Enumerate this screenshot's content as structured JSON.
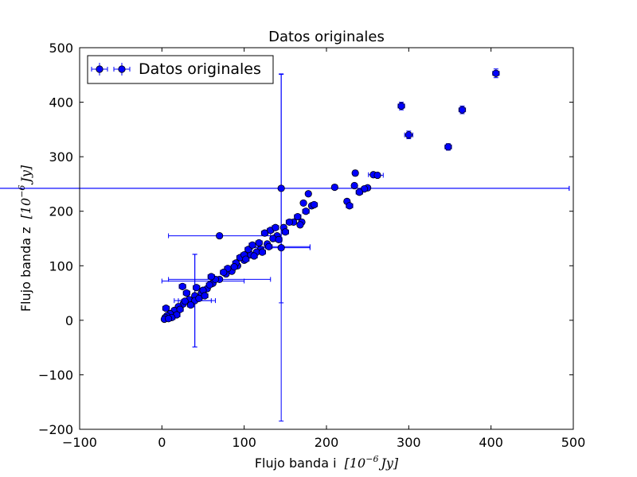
{
  "chart_data": {
    "type": "scatter",
    "title": "Datos originales",
    "xlabel": "Flujo banda i",
    "ylabel": "Flujo banda z",
    "unit_label": "[10",
    "unit_exp": "−6",
    "unit_tail": "Jy]",
    "xlim": [
      -100,
      500
    ],
    "ylim": [
      -200,
      500
    ],
    "xticks": [
      -100,
      0,
      100,
      200,
      300,
      400,
      500
    ],
    "yticks": [
      -200,
      -100,
      0,
      100,
      200,
      300,
      400,
      500
    ],
    "xtick_labels": [
      "−100",
      "0",
      "100",
      "200",
      "300",
      "400",
      "500"
    ],
    "ytick_labels": [
      "−200",
      "−100",
      "0",
      "100",
      "200",
      "300",
      "400",
      "500"
    ],
    "grid": false,
    "legend_position": "top-left",
    "marker_color": "#0000ff",
    "series": [
      {
        "name": "Datos originales",
        "x": [
          406,
          291,
          365,
          300,
          348,
          235,
          257,
          262,
          250,
          246,
          210,
          234,
          225,
          178,
          170,
          168,
          172,
          182,
          160,
          148,
          140,
          135,
          128,
          120,
          115,
          108,
          100,
          92,
          85,
          78,
          70,
          62,
          55,
          48,
          40,
          33,
          26,
          20,
          15,
          10,
          6,
          4,
          3,
          70,
          145,
          145,
          40,
          25,
          22,
          30,
          45,
          50,
          58,
          65,
          80,
          90,
          95,
          100,
          105,
          110,
          118,
          125,
          132,
          138,
          155,
          165,
          175,
          60,
          52,
          35,
          18,
          12,
          8,
          5,
          28,
          42,
          75,
          88,
          102,
          112,
          122,
          130,
          142,
          150,
          185,
          228,
          240
        ],
        "y": [
          453,
          393,
          386,
          340,
          318,
          270,
          267,
          266,
          243,
          241,
          244,
          247,
          218,
          232,
          180,
          175,
          215,
          210,
          180,
          170,
          155,
          150,
          140,
          130,
          125,
          120,
          110,
          100,
          90,
          85,
          75,
          68,
          58,
          50,
          45,
          38,
          30,
          25,
          18,
          12,
          8,
          5,
          2,
          155,
          133,
          242,
          36,
          62,
          20,
          50,
          40,
          55,
          65,
          75,
          95,
          105,
          115,
          120,
          130,
          138,
          142,
          160,
          165,
          170,
          180,
          190,
          200,
          80,
          45,
          28,
          10,
          5,
          3,
          22,
          35,
          60,
          88,
          98,
          112,
          118,
          125,
          135,
          148,
          162,
          212,
          210,
          235
        ],
        "xerr": [
          4,
          4,
          4,
          5,
          4,
          3,
          6,
          7,
          3,
          3,
          3,
          3,
          3,
          2,
          2,
          2,
          2,
          2,
          2,
          2,
          2,
          2,
          2,
          2,
          2,
          2,
          2,
          2,
          2,
          2,
          2,
          2,
          2,
          2,
          2,
          2,
          2,
          2,
          2,
          2,
          2,
          2,
          2,
          62,
          35,
          350,
          20,
          4,
          4,
          4,
          4,
          4,
          4,
          4,
          4,
          4,
          4,
          4,
          4,
          4,
          4,
          4,
          4,
          4,
          4,
          4,
          4,
          4,
          4,
          4,
          4,
          4,
          4,
          4,
          4,
          4,
          4,
          4,
          4,
          4,
          4,
          4,
          4,
          4,
          4,
          4,
          4
        ],
        "yerr": [
          8,
          7,
          7,
          7,
          6,
          5,
          4,
          4,
          4,
          4,
          4,
          4,
          3,
          3,
          3,
          3,
          3,
          3,
          3,
          3,
          3,
          3,
          3,
          3,
          3,
          3,
          3,
          3,
          3,
          3,
          3,
          3,
          3,
          3,
          3,
          3,
          3,
          3,
          3,
          3,
          3,
          3,
          3,
          3,
          3,
          210,
          85,
          3,
          3,
          3,
          3,
          3,
          3,
          3,
          3,
          3,
          3,
          3,
          3,
          3,
          3,
          3,
          3,
          3,
          3,
          3,
          3,
          3,
          3,
          3,
          3,
          3,
          3,
          3,
          3,
          3,
          3,
          3,
          3,
          3,
          3,
          3,
          3,
          3,
          3,
          3,
          3
        ]
      }
    ],
    "extra_errorbars": [
      {
        "x": 145,
        "y": 135,
        "xerr": 35,
        "yerr": 0
      },
      {
        "x": 145,
        "y": 242,
        "xerr": 350,
        "yerr": 0
      },
      {
        "x": 40,
        "y": 36,
        "xerr": 0,
        "yerr": 85
      },
      {
        "x": 40,
        "y": 36,
        "xerr": 25,
        "yerr": 0
      },
      {
        "x": 70,
        "y": 75,
        "xerr": 62,
        "yerr": 0
      },
      {
        "x": 50,
        "y": 72,
        "xerr": 50,
        "yerr": 0
      },
      {
        "x": 145,
        "y": 133,
        "xerr": 0,
        "yerr": 318
      }
    ]
  }
}
